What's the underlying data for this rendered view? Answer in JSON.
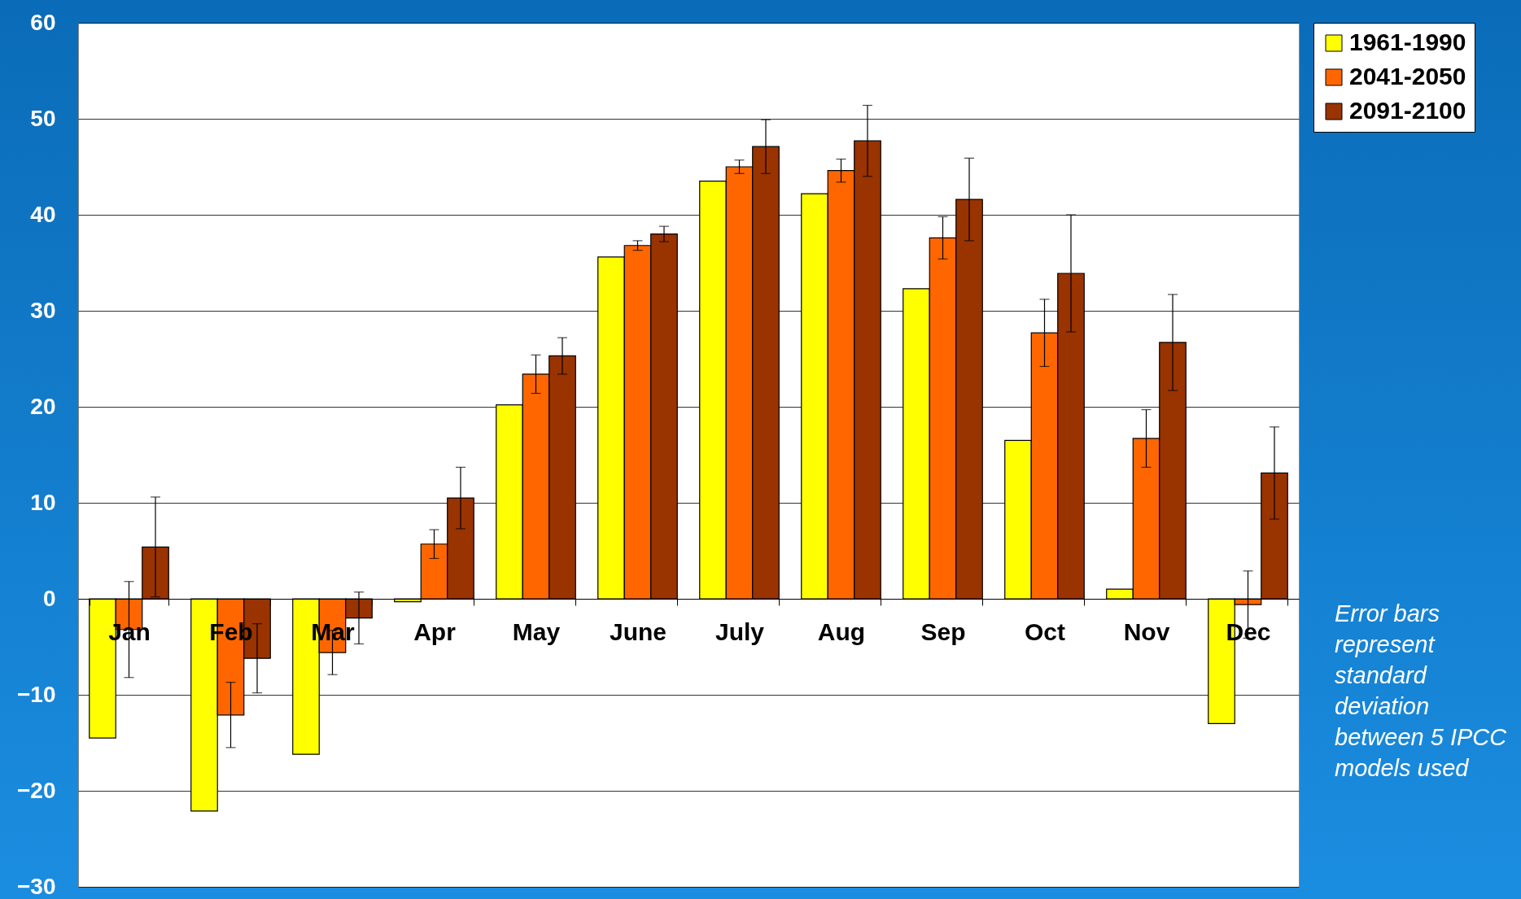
{
  "chart_data": {
    "type": "bar",
    "categories": [
      "Jan",
      "Feb",
      "Mar",
      "Apr",
      "May",
      "June",
      "July",
      "Aug",
      "Sep",
      "Oct",
      "Nov",
      "Dec"
    ],
    "series": [
      {
        "name": "1961-1990",
        "color": "#ffff00",
        "values": [
          -14.5,
          -22.1,
          -16.2,
          -0.3,
          20.2,
          35.6,
          43.5,
          42.2,
          32.3,
          16.5,
          1.0,
          -13.0
        ]
      },
      {
        "name": "2041-2050",
        "color": "#ff6600",
        "values": [
          -3.2,
          -12.1,
          -5.6,
          5.7,
          23.4,
          36.8,
          45.0,
          44.6,
          37.6,
          27.7,
          16.7,
          -0.6
        ],
        "errors": [
          5,
          3.4,
          2.3,
          1.5,
          2,
          0.5,
          0.7,
          1.2,
          2.2,
          3.5,
          3,
          3.5
        ]
      },
      {
        "name": "2091-2100",
        "color": "#993300",
        "values": [
          5.4,
          -6.2,
          -2.0,
          10.5,
          25.3,
          38.0,
          47.1,
          47.7,
          41.6,
          33.9,
          26.7,
          13.1
        ],
        "errors": [
          5.2,
          3.6,
          2.7,
          3.2,
          1.9,
          0.8,
          2.8,
          3.7,
          4.3,
          6.1,
          5,
          4.8
        ]
      }
    ],
    "ylim": [
      -30,
      60
    ],
    "yticks": [
      -30,
      -20,
      -10,
      0,
      10,
      20,
      30,
      40,
      50,
      60
    ],
    "grid": "y",
    "legend": "right",
    "annotations": [
      "Error bars represent standard deviation between 5 IPCC models used"
    ]
  }
}
